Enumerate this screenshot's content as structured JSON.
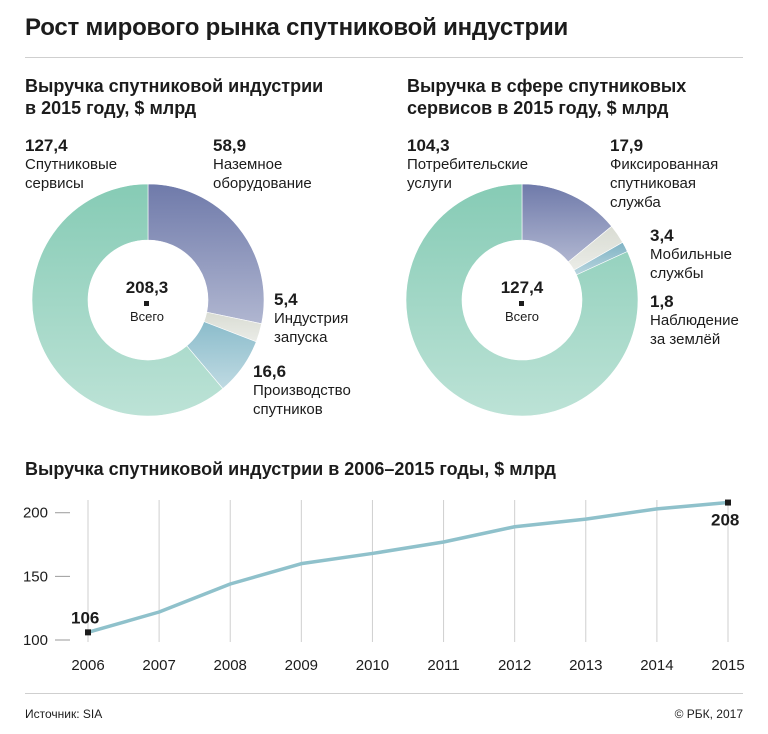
{
  "title": "Рост мирового рынка спутниковой индустрии",
  "chart_data": [
    {
      "type": "pie",
      "title": "Выручка  спутниковой индустрии в 2015 году, $ млрд",
      "title_lines": [
        "Выручка  спутниковой индустрии",
        "в 2015 году, $ млрд"
      ],
      "total": 208.3,
      "total_label": "208,3",
      "center_label": "Всего",
      "slices": [
        {
          "name": "Наземное оборудование",
          "lines": [
            "Наземное",
            "оборудование"
          ],
          "value": 58.9,
          "value_label": "58,9",
          "color": "#6f7aaa"
        },
        {
          "name": "Индустрия запуска",
          "lines": [
            "Индустрия",
            "запуска"
          ],
          "value": 5.4,
          "value_label": "5,4",
          "color": "#d9dcd3"
        },
        {
          "name": "Производство спутников",
          "lines": [
            "Производство",
            "спутников"
          ],
          "value": 16.6,
          "value_label": "16,6",
          "color": "#8bbccb"
        },
        {
          "name": "Спутниковые сервисы",
          "lines": [
            "Спутниковые",
            "сервисы"
          ],
          "value": 127.4,
          "value_label": "127,4",
          "color": "#86cbb5"
        }
      ]
    },
    {
      "type": "pie",
      "title": "Выручка в сфере спутниковых сервисов в 2015 году, $ млрд",
      "title_lines": [
        "Выручка в сфере спутниковых",
        "сервисов в 2015 году, $ млрд"
      ],
      "total": 127.4,
      "total_label": "127,4",
      "center_label": "Всего",
      "slices": [
        {
          "name": "Фиксированная спутниковая служба",
          "lines": [
            "Фиксированная",
            "спутниковая",
            "служба"
          ],
          "value": 17.9,
          "value_label": "17,9",
          "color": "#6f7aaa"
        },
        {
          "name": "Мобильные службы",
          "lines": [
            "Мобильные",
            "службы"
          ],
          "value": 3.4,
          "value_label": "3,4",
          "color": "#d9dcd3"
        },
        {
          "name": "Наблюдение за землёй",
          "lines": [
            "Наблюдение",
            "за землёй"
          ],
          "value": 1.8,
          "value_label": "1,8",
          "color": "#7fb3c4"
        },
        {
          "name": "Потребительские услуги",
          "lines": [
            "Потребительские",
            "услуги"
          ],
          "value": 104.3,
          "value_label": "104,3",
          "color": "#86cbb5"
        }
      ]
    },
    {
      "type": "line",
      "title": "Выручка спутниковой индустрии в 2006–2015 годы, $ млрд",
      "x": [
        "2006",
        "2007",
        "2008",
        "2009",
        "2010",
        "2011",
        "2012",
        "2013",
        "2014",
        "2015"
      ],
      "y": [
        106,
        122,
        144,
        160,
        168,
        177,
        189,
        195,
        203,
        208
      ],
      "ylim": [
        100,
        210
      ],
      "yticks": [
        "100",
        "150",
        "200"
      ],
      "annotations": {
        "first": "106",
        "last": "208"
      },
      "color": "#8fc1cb"
    }
  ],
  "footer": {
    "source": "Источник: SIA",
    "copyright": "© РБК, 2017"
  }
}
